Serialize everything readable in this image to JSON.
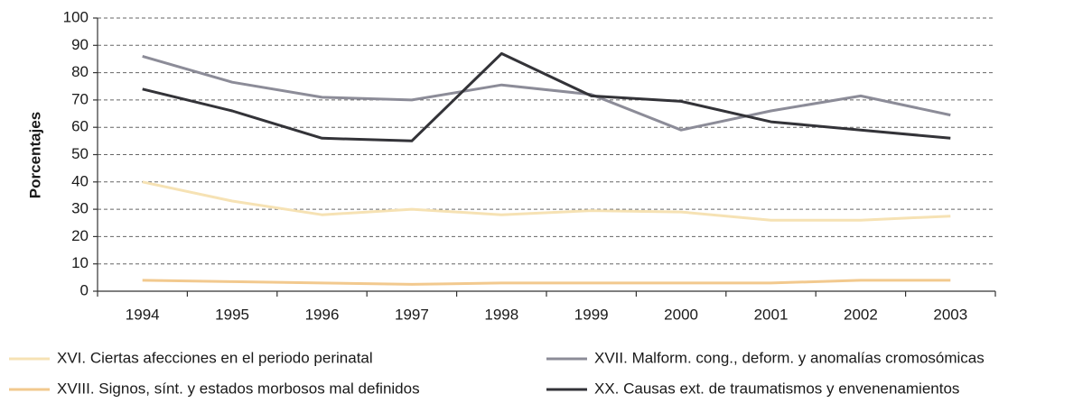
{
  "chart_data": {
    "type": "line",
    "y_label": "Porcentajes",
    "categories": [
      "1994",
      "1995",
      "1996",
      "1997",
      "1998",
      "1999",
      "2000",
      "2001",
      "2002",
      "2003"
    ],
    "series": [
      {
        "name": "XVI. Ciertas afecciones en el periodo perinatal",
        "color": "#f6e2b4",
        "values": [
          40,
          33,
          28,
          30,
          28,
          29.5,
          29,
          26,
          26,
          27.5
        ]
      },
      {
        "name": "XVII. Malform. cong., deform. y anomalías cromosómicas",
        "color": "#8c8c98",
        "values": [
          86,
          76.5,
          71,
          70,
          75.5,
          72,
          59,
          66,
          71.5,
          64.5
        ]
      },
      {
        "name": "XVIII. Signos, sínt. y estados morbosos mal definidos",
        "color": "#f2c98e",
        "values": [
          4,
          3.5,
          3,
          2.5,
          3,
          3,
          3,
          3,
          4,
          4
        ]
      },
      {
        "name": "XX. Causas ext. de traumatismos y envenenamientos",
        "color": "#333338",
        "values": [
          74,
          66,
          56,
          55,
          87,
          71.5,
          69.5,
          62,
          59,
          56
        ]
      }
    ],
    "ylim": [
      0,
      100
    ],
    "yticks": [
      0,
      10,
      20,
      30,
      40,
      50,
      60,
      70,
      80,
      90,
      100
    ],
    "grid": true,
    "legend": "bottom"
  }
}
